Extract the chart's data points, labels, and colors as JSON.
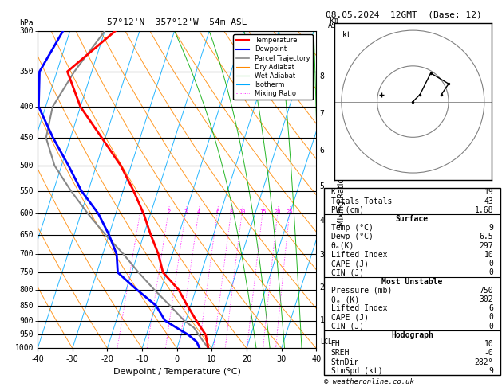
{
  "title_left": "57°12'N  357°12'W  54m ASL",
  "title_right": "08.05.2024  12GMT  (Base: 12)",
  "xlabel": "Dewpoint / Temperature (°C)",
  "pressure_levels": [
    300,
    350,
    400,
    450,
    500,
    550,
    600,
    650,
    700,
    750,
    800,
    850,
    900,
    950,
    1000
  ],
  "temp_min": -40,
  "temp_max": 40,
  "skew_factor": 0.7,
  "temp_profile": {
    "pressure": [
      1000,
      975,
      950,
      925,
      900,
      850,
      800,
      750,
      700,
      650,
      600,
      550,
      500,
      450,
      400,
      350,
      300
    ],
    "temp": [
      9,
      8,
      7,
      5,
      3,
      -1,
      -5,
      -11,
      -14,
      -18,
      -22,
      -27,
      -33,
      -41,
      -50,
      -57,
      -47
    ]
  },
  "dewp_profile": {
    "pressure": [
      1000,
      975,
      950,
      925,
      900,
      850,
      800,
      750,
      700,
      650,
      600,
      550,
      500,
      450,
      400,
      350,
      300
    ],
    "temp": [
      6.5,
      5,
      2,
      -2,
      -6,
      -10,
      -17,
      -24,
      -26,
      -30,
      -35,
      -42,
      -48,
      -55,
      -62,
      -65,
      -62
    ]
  },
  "parcel_profile": {
    "pressure": [
      1000,
      975,
      950,
      925,
      900,
      850,
      800,
      750,
      700,
      650,
      600,
      550,
      500,
      450,
      400,
      350,
      300
    ],
    "temp": [
      9,
      7,
      5,
      3,
      -0.5,
      -6,
      -12,
      -18,
      -24,
      -31,
      -38,
      -45,
      -52,
      -57,
      -58,
      -55,
      -50
    ]
  },
  "mixing_ratios": [
    1,
    2,
    3,
    4,
    6,
    8,
    10,
    15,
    20,
    25
  ],
  "mixing_ratio_labels": [
    "1",
    "2",
    "3",
    "4",
    "6",
    "8",
    "10",
    "15",
    "20",
    "25"
  ],
  "lcl_pressure": 975,
  "temp_color": "#ff0000",
  "dewp_color": "#0000ff",
  "parcel_color": "#888888",
  "dry_adiabat_color": "#ff8800",
  "wet_adiabat_color": "#00aa00",
  "isotherm_color": "#00aaff",
  "mixing_ratio_color": "#ff00ff",
  "info_K": 19,
  "info_TT": 43,
  "info_PW": 1.68,
  "sfc_temp": 9,
  "sfc_dewp": 6.5,
  "sfc_theta": 297,
  "sfc_li": 10,
  "sfc_cape": 0,
  "sfc_cin": 0,
  "mu_pressure": 750,
  "mu_theta": 302,
  "mu_li": 6,
  "mu_cape": 0,
  "mu_cin": 0,
  "hodo_eh": 10,
  "hodo_sreh": "-0",
  "hodo_stmdir": "282°",
  "hodo_stmdir_deg": 282,
  "hodo_stmspd": 9,
  "hodo_u": [
    0,
    2,
    5,
    10,
    8
  ],
  "hodo_v": [
    0,
    2,
    8,
    5,
    2
  ]
}
